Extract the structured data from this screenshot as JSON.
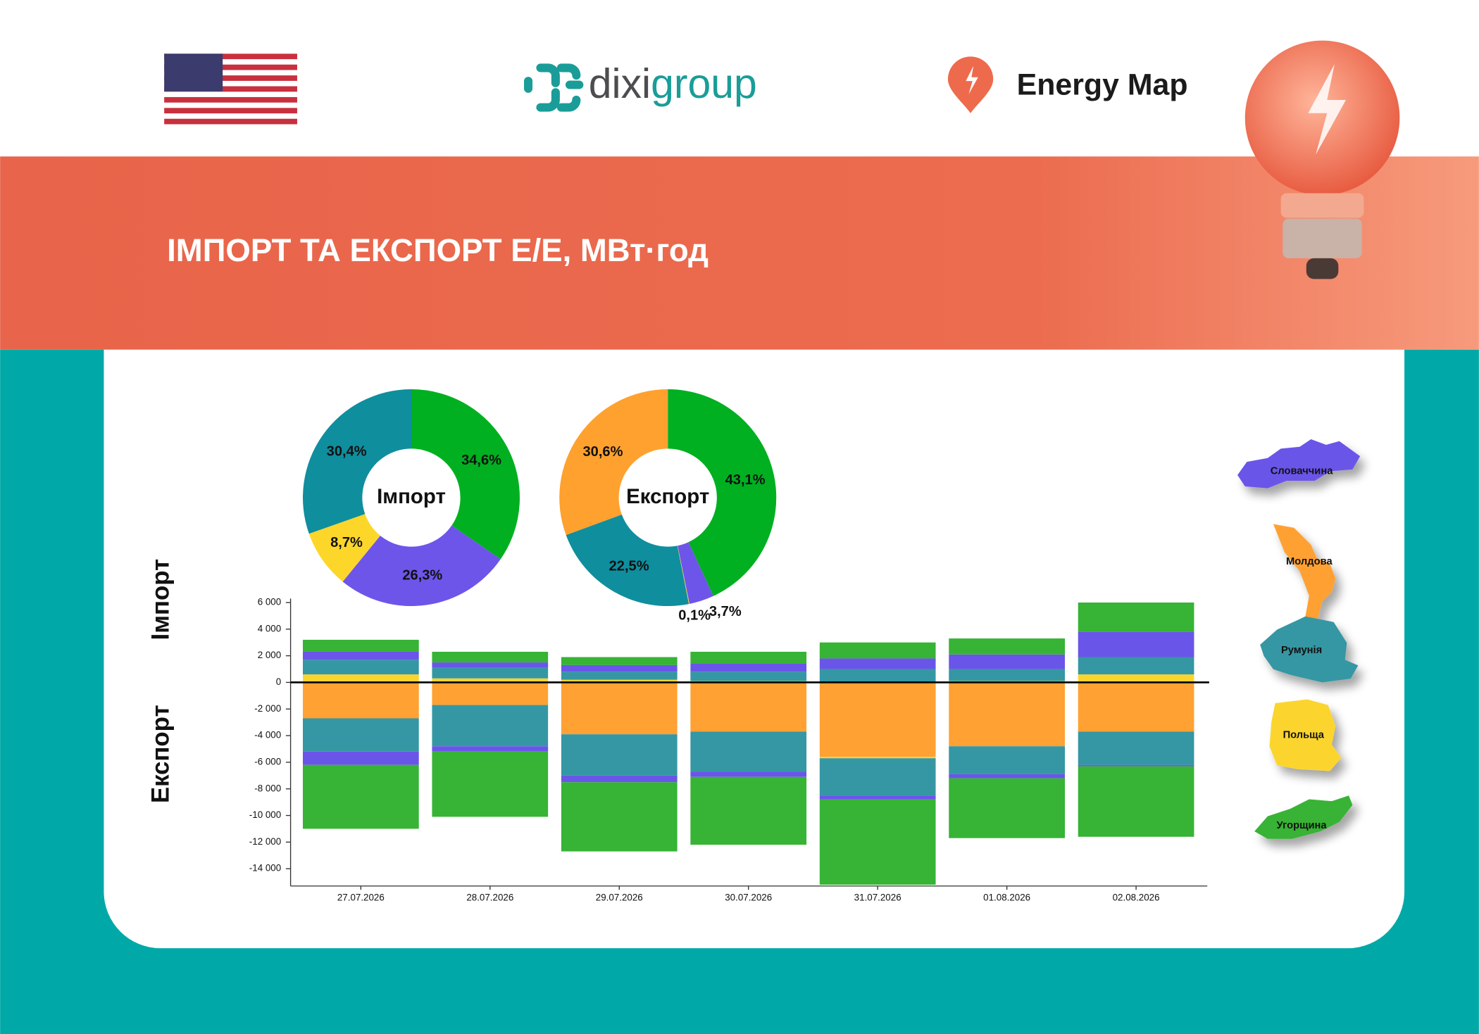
{
  "header": {
    "logo": [
      "dixi",
      "group"
    ],
    "brand": "Energy Map",
    "title": "ІМПОРТ ТА ЕКСПОРТ Е/Е, МВт·год"
  },
  "chart_data": [
    {
      "type": "pie",
      "center_label": "Імпорт",
      "values": [
        34.6,
        26.3,
        8.7,
        30.4
      ],
      "value_labels": [
        "34,6%",
        "26,3%",
        "8,7%",
        "30,4%"
      ],
      "colors": [
        "#00b020",
        "#6d55ea",
        "#fdd62a",
        "#0f8e9e"
      ]
    },
    {
      "type": "pie",
      "center_label": "Експорт",
      "values": [
        43.1,
        3.7,
        0.1,
        22.5,
        30.6
      ],
      "value_labels": [
        "43,1%",
        "3,7%",
        "0,1%",
        "22,5%",
        "30,6%"
      ],
      "colors": [
        "#00b020",
        "#6d55ea",
        "#fdd62a",
        "#0f8e9e",
        "#ffa12e"
      ]
    },
    {
      "type": "bar",
      "stacked": true,
      "ylabel_import": "Імпорт",
      "ylabel_export": "Експорт",
      "categories": [
        "27.07.2026",
        "28.07.2026",
        "29.07.2026",
        "30.07.2026",
        "31.07.2026",
        "01.08.2026",
        "02.08.2026"
      ],
      "series": [
        {
          "name": "Словаччина",
          "color": "#6a55e9",
          "values": [
            600,
            400,
            500,
            600,
            800,
            1100,
            1900
          ],
          "export_values": [
            -1000,
            -400,
            -500,
            -400,
            -300,
            -300,
            -100
          ]
        },
        {
          "name": "Молдова",
          "color": "#ffa133",
          "values": [
            0,
            0,
            0,
            0,
            0,
            0,
            0
          ],
          "export_values": [
            -2700,
            -1700,
            -3900,
            -3700,
            -5600,
            -4800,
            -3700
          ]
        },
        {
          "name": "Румунія",
          "color": "#3597a3",
          "values": [
            1100,
            800,
            600,
            700,
            1000,
            900,
            1300
          ],
          "export_values": [
            -2500,
            -3100,
            -3100,
            -3000,
            -2800,
            -2100,
            -2500
          ]
        },
        {
          "name": "Польща",
          "color": "#fbd52d",
          "values": [
            600,
            300,
            200,
            100,
            0,
            100,
            600
          ],
          "export_values": [
            0,
            0,
            0,
            0,
            -100,
            0,
            0
          ]
        },
        {
          "name": "Угорщина",
          "color": "#37b336",
          "values": [
            900,
            800,
            600,
            900,
            1200,
            1200,
            2200
          ],
          "export_values": [
            -4800,
            -4900,
            -5200,
            -5100,
            -6400,
            -4500,
            -5300
          ]
        }
      ],
      "ylim": [
        -15300,
        6300
      ],
      "yticks": [
        {
          "value": 6000,
          "label": "6 000"
        },
        {
          "value": 4000,
          "label": "4 000"
        },
        {
          "value": 2000,
          "label": "2 000"
        },
        0,
        {
          "value": -2000,
          "label": "-2 000"
        },
        {
          "value": -4000,
          "label": "-4 000"
        },
        {
          "value": -6000,
          "label": "-6 000"
        },
        {
          "value": -8000,
          "label": "-8 000"
        },
        {
          "value": -10000,
          "label": "-10 000"
        },
        {
          "value": -12000,
          "label": "-12 000"
        },
        {
          "value": -14000,
          "label": "-14 000"
        }
      ]
    }
  ]
}
